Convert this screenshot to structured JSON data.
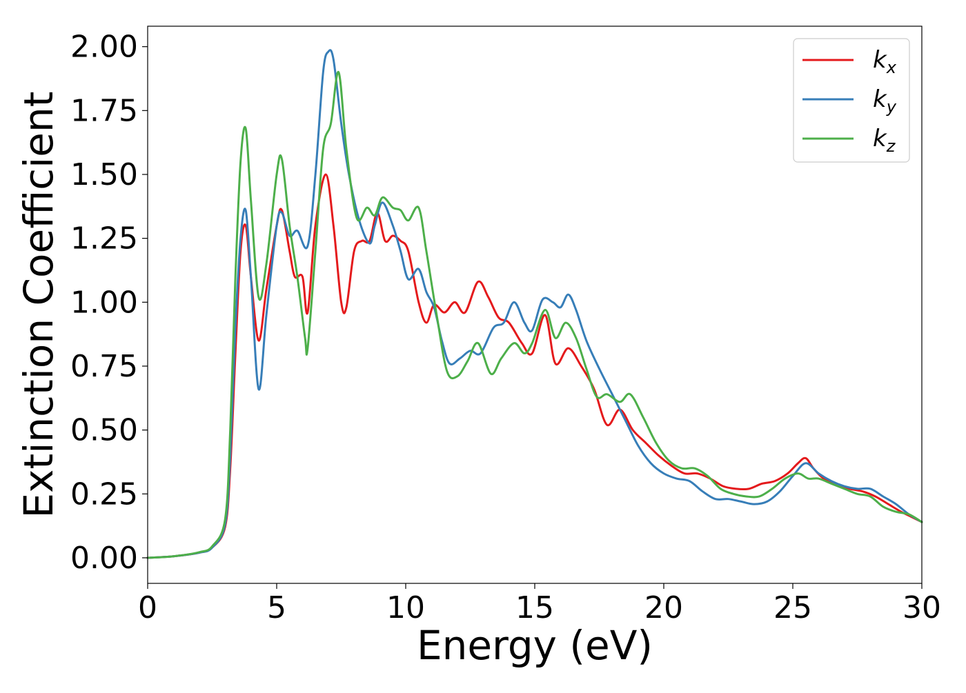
{
  "chart_data": {
    "type": "line",
    "title": "",
    "xlabel": "Energy (eV)",
    "ylabel": "Extinction Coefficient",
    "xlim": [
      0,
      30
    ],
    "ylim": [
      -0.1,
      2.08
    ],
    "xticks": [
      0,
      5,
      10,
      15,
      20,
      25,
      30
    ],
    "xtick_labels": [
      "0",
      "5",
      "10",
      "15",
      "20",
      "25",
      "30"
    ],
    "yticks": [
      0,
      0.25,
      0.5,
      0.75,
      1.0,
      1.25,
      1.5,
      1.75,
      2.0
    ],
    "ytick_labels": [
      "0.00",
      "0.25",
      "0.50",
      "0.75",
      "1.00",
      "1.25",
      "1.50",
      "1.75",
      "2.00"
    ],
    "grid": false,
    "legend_position": "top-right",
    "series": [
      {
        "name": "k",
        "subscript": "x",
        "color": "#e41a1c",
        "points": [
          [
            0,
            0
          ],
          [
            1,
            0.006
          ],
          [
            2,
            0.02
          ],
          [
            2.5,
            0.04
          ],
          [
            3,
            0.12
          ],
          [
            3.2,
            0.35
          ],
          [
            3.4,
            0.8
          ],
          [
            3.6,
            1.2
          ],
          [
            3.8,
            1.3
          ],
          [
            4,
            1.1
          ],
          [
            4.3,
            0.85
          ],
          [
            4.6,
            1.05
          ],
          [
            5,
            1.3
          ],
          [
            5.2,
            1.36
          ],
          [
            5.5,
            1.2
          ],
          [
            5.7,
            1.1
          ],
          [
            6,
            1.1
          ],
          [
            6.2,
            0.96
          ],
          [
            6.5,
            1.3
          ],
          [
            6.9,
            1.5
          ],
          [
            7.2,
            1.3
          ],
          [
            7.5,
            1.0
          ],
          [
            7.7,
            0.98
          ],
          [
            8,
            1.2
          ],
          [
            8.3,
            1.24
          ],
          [
            8.6,
            1.24
          ],
          [
            8.9,
            1.35
          ],
          [
            9.2,
            1.24
          ],
          [
            9.5,
            1.26
          ],
          [
            9.8,
            1.24
          ],
          [
            10.1,
            1.2
          ],
          [
            10.5,
            1.0
          ],
          [
            10.8,
            0.92
          ],
          [
            11.1,
            0.99
          ],
          [
            11.5,
            0.96
          ],
          [
            11.9,
            1.0
          ],
          [
            12.3,
            0.96
          ],
          [
            12.8,
            1.08
          ],
          [
            13.2,
            1.02
          ],
          [
            13.6,
            0.94
          ],
          [
            14,
            0.92
          ],
          [
            14.5,
            0.84
          ],
          [
            14.9,
            0.8
          ],
          [
            15.4,
            0.95
          ],
          [
            15.8,
            0.76
          ],
          [
            16.3,
            0.82
          ],
          [
            16.8,
            0.75
          ],
          [
            17.3,
            0.66
          ],
          [
            17.8,
            0.52
          ],
          [
            18.3,
            0.58
          ],
          [
            18.8,
            0.5
          ],
          [
            19.3,
            0.45
          ],
          [
            19.8,
            0.4
          ],
          [
            20.3,
            0.36
          ],
          [
            20.8,
            0.33
          ],
          [
            21.3,
            0.33
          ],
          [
            21.8,
            0.31
          ],
          [
            22.3,
            0.28
          ],
          [
            22.8,
            0.27
          ],
          [
            23.3,
            0.27
          ],
          [
            23.8,
            0.29
          ],
          [
            24.3,
            0.3
          ],
          [
            24.8,
            0.33
          ],
          [
            25.2,
            0.37
          ],
          [
            25.5,
            0.39
          ],
          [
            25.8,
            0.35
          ],
          [
            26.2,
            0.31
          ],
          [
            26.7,
            0.29
          ],
          [
            27.2,
            0.27
          ],
          [
            27.7,
            0.26
          ],
          [
            28.2,
            0.24
          ],
          [
            28.7,
            0.21
          ],
          [
            29.2,
            0.18
          ],
          [
            29.6,
            0.16
          ],
          [
            30,
            0.14
          ]
        ]
      },
      {
        "name": "k",
        "subscript": "y",
        "color": "#377eb8",
        "points": [
          [
            0,
            0
          ],
          [
            1,
            0.006
          ],
          [
            2,
            0.02
          ],
          [
            2.5,
            0.04
          ],
          [
            3,
            0.13
          ],
          [
            3.2,
            0.4
          ],
          [
            3.4,
            0.9
          ],
          [
            3.6,
            1.25
          ],
          [
            3.8,
            1.36
          ],
          [
            4,
            1.1
          ],
          [
            4.3,
            0.66
          ],
          [
            4.6,
            0.95
          ],
          [
            5,
            1.3
          ],
          [
            5.2,
            1.35
          ],
          [
            5.5,
            1.26
          ],
          [
            5.8,
            1.28
          ],
          [
            6.2,
            1.22
          ],
          [
            6.5,
            1.5
          ],
          [
            6.8,
            1.9
          ],
          [
            7,
            1.98
          ],
          [
            7.2,
            1.95
          ],
          [
            7.5,
            1.7
          ],
          [
            7.8,
            1.5
          ],
          [
            8.2,
            1.32
          ],
          [
            8.6,
            1.23
          ],
          [
            8.8,
            1.3
          ],
          [
            9.1,
            1.39
          ],
          [
            9.5,
            1.3
          ],
          [
            9.8,
            1.2
          ],
          [
            10.1,
            1.09
          ],
          [
            10.5,
            1.13
          ],
          [
            10.8,
            1.04
          ],
          [
            11.1,
            0.98
          ],
          [
            11.4,
            0.85
          ],
          [
            11.7,
            0.76
          ],
          [
            12.1,
            0.78
          ],
          [
            12.5,
            0.81
          ],
          [
            12.9,
            0.8
          ],
          [
            13.4,
            0.9
          ],
          [
            13.8,
            0.92
          ],
          [
            14.2,
            1.0
          ],
          [
            14.6,
            0.92
          ],
          [
            14.9,
            0.89
          ],
          [
            15.3,
            1.01
          ],
          [
            15.7,
            1.0
          ],
          [
            16,
            0.98
          ],
          [
            16.3,
            1.03
          ],
          [
            16.6,
            0.97
          ],
          [
            17,
            0.85
          ],
          [
            17.5,
            0.74
          ],
          [
            18,
            0.64
          ],
          [
            18.5,
            0.54
          ],
          [
            19,
            0.44
          ],
          [
            19.5,
            0.37
          ],
          [
            20,
            0.33
          ],
          [
            20.5,
            0.31
          ],
          [
            21,
            0.3
          ],
          [
            21.5,
            0.26
          ],
          [
            22,
            0.23
          ],
          [
            22.5,
            0.23
          ],
          [
            23,
            0.22
          ],
          [
            23.5,
            0.21
          ],
          [
            24,
            0.22
          ],
          [
            24.5,
            0.26
          ],
          [
            25,
            0.32
          ],
          [
            25.5,
            0.37
          ],
          [
            26,
            0.33
          ],
          [
            26.5,
            0.3
          ],
          [
            27,
            0.28
          ],
          [
            27.5,
            0.27
          ],
          [
            28,
            0.27
          ],
          [
            28.5,
            0.24
          ],
          [
            29,
            0.21
          ],
          [
            29.5,
            0.17
          ],
          [
            30,
            0.14
          ]
        ]
      },
      {
        "name": "k",
        "subscript": "z",
        "color": "#4daf4a",
        "points": [
          [
            0,
            0
          ],
          [
            1,
            0.006
          ],
          [
            2,
            0.022
          ],
          [
            2.5,
            0.045
          ],
          [
            3,
            0.15
          ],
          [
            3.2,
            0.5
          ],
          [
            3.4,
            1.1
          ],
          [
            3.6,
            1.55
          ],
          [
            3.8,
            1.68
          ],
          [
            4,
            1.4
          ],
          [
            4.3,
            1.02
          ],
          [
            4.6,
            1.15
          ],
          [
            5,
            1.5
          ],
          [
            5.2,
            1.56
          ],
          [
            5.5,
            1.3
          ],
          [
            5.8,
            1.1
          ],
          [
            6.1,
            0.86
          ],
          [
            6.2,
            0.82
          ],
          [
            6.5,
            1.2
          ],
          [
            6.8,
            1.6
          ],
          [
            7.1,
            1.7
          ],
          [
            7.4,
            1.9
          ],
          [
            7.7,
            1.6
          ],
          [
            8.1,
            1.33
          ],
          [
            8.5,
            1.37
          ],
          [
            8.8,
            1.34
          ],
          [
            9.1,
            1.41
          ],
          [
            9.5,
            1.37
          ],
          [
            9.8,
            1.36
          ],
          [
            10.1,
            1.32
          ],
          [
            10.5,
            1.37
          ],
          [
            10.8,
            1.2
          ],
          [
            11.2,
            0.95
          ],
          [
            11.6,
            0.73
          ],
          [
            12,
            0.71
          ],
          [
            12.4,
            0.77
          ],
          [
            12.8,
            0.84
          ],
          [
            13.3,
            0.72
          ],
          [
            13.7,
            0.78
          ],
          [
            14.2,
            0.84
          ],
          [
            14.6,
            0.8
          ],
          [
            14.9,
            0.84
          ],
          [
            15.4,
            0.97
          ],
          [
            15.8,
            0.86
          ],
          [
            16.2,
            0.92
          ],
          [
            16.6,
            0.86
          ],
          [
            17,
            0.74
          ],
          [
            17.4,
            0.63
          ],
          [
            17.8,
            0.64
          ],
          [
            18.3,
            0.61
          ],
          [
            18.7,
            0.64
          ],
          [
            19.2,
            0.55
          ],
          [
            19.7,
            0.45
          ],
          [
            20.2,
            0.38
          ],
          [
            20.7,
            0.35
          ],
          [
            21.2,
            0.35
          ],
          [
            21.7,
            0.32
          ],
          [
            22.2,
            0.27
          ],
          [
            22.7,
            0.25
          ],
          [
            23.2,
            0.24
          ],
          [
            23.7,
            0.24
          ],
          [
            24.2,
            0.27
          ],
          [
            24.7,
            0.31
          ],
          [
            25.2,
            0.33
          ],
          [
            25.6,
            0.31
          ],
          [
            26,
            0.31
          ],
          [
            26.5,
            0.29
          ],
          [
            27,
            0.27
          ],
          [
            27.5,
            0.25
          ],
          [
            28,
            0.24
          ],
          [
            28.5,
            0.2
          ],
          [
            29,
            0.18
          ],
          [
            29.5,
            0.17
          ],
          [
            30,
            0.14
          ]
        ]
      }
    ]
  }
}
